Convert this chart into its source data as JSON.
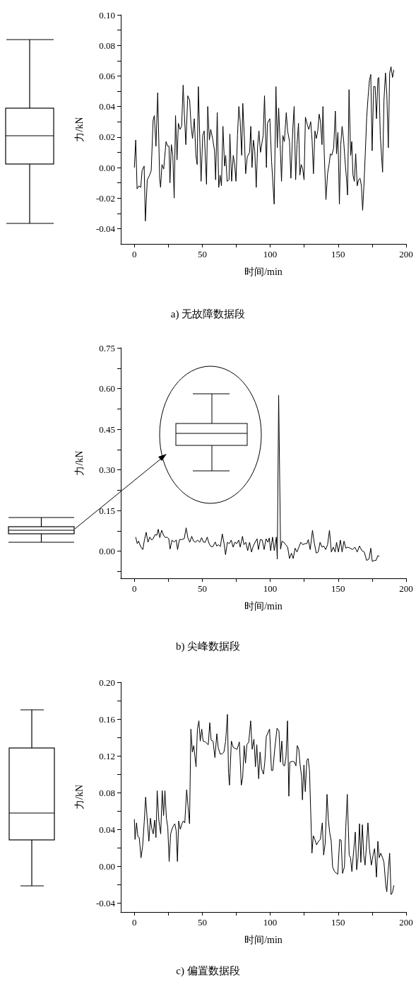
{
  "chart_data": [
    {
      "type": "line",
      "title": "a) 无故障数据段",
      "xlabel": "时间/min",
      "ylabel": "力/kN",
      "color": "#000000",
      "xlim": [
        -10,
        200
      ],
      "ylim": [
        -0.05,
        0.1
      ],
      "xticks": [
        0,
        {
          "value": 25,
          "label": null
        },
        50,
        {
          "value": 75,
          "label": null
        },
        100,
        {
          "value": 125,
          "label": null
        },
        150,
        {
          "value": 175,
          "label": null
        },
        200
      ],
      "yticks": [
        {
          "value": -0.04,
          "label": "-0.04"
        },
        {
          "value": -0.03,
          "label": null
        },
        {
          "value": -0.02,
          "label": "-0.02"
        },
        {
          "value": -0.01,
          "label": null
        },
        {
          "value": 0,
          "label": "0.00"
        },
        {
          "value": 0.01,
          "label": null
        },
        {
          "value": 0.02,
          "label": "0.02"
        },
        {
          "value": 0.03,
          "label": null
        },
        {
          "value": 0.04,
          "label": "0.04"
        },
        {
          "value": 0.05,
          "label": null
        },
        {
          "value": 0.06,
          "label": "0.06"
        },
        {
          "value": 0.07,
          "label": null
        },
        {
          "value": 0.08,
          "label": "0.08"
        },
        {
          "value": 0.09,
          "label": null
        },
        {
          "value": 0.1,
          "label": "0.10"
        }
      ],
      "x": [
        0,
        1,
        2,
        3.4,
        4.7,
        5.7,
        7.2,
        8.1,
        9.5,
        11.2,
        12.4,
        13.8,
        14.7,
        15.9,
        17.2,
        18.6,
        19.3,
        20.3,
        21.6,
        23.3,
        24.5,
        25.5,
        26.2,
        27.2,
        28.3,
        29.3,
        30.3,
        31.4,
        32.4,
        33.6,
        34.8,
        35.9,
        36.7,
        37.9,
        39.3,
        40.7,
        41.7,
        42.8,
        44.1,
        45.3,
        46.2,
        47.1,
        48.3,
        49.1,
        50.3,
        51.4,
        53.1,
        54,
        55.2,
        56.2,
        57.8,
        59,
        59.8,
        61,
        62.1,
        63.1,
        64.1,
        65.2,
        66.4,
        67.2,
        68.3,
        69.7,
        70.3,
        71.6,
        72.8,
        73.8,
        74.8,
        75.9,
        76.9,
        77.9,
        79,
        79.8,
        81,
        81.9,
        83.1,
        84.8,
        85.7,
        86.6,
        87.6,
        88.6,
        89.7,
        90.7,
        91.7,
        92.8,
        94.8,
        95.8,
        97.2,
        97.9,
        99.7,
        101,
        102.9,
        104.2,
        105.2,
        106.2,
        107.3,
        108.3,
        109.3,
        110.4,
        111.8,
        112.8,
        114.2,
        115.2,
        116.6,
        117.6,
        118.7,
        119.7,
        120.8,
        121.8,
        122.8,
        123.9,
        124.9,
        125.9,
        127.3,
        128.4,
        129.8,
        130.8,
        131.8,
        132.9,
        133.9,
        135,
        136,
        137,
        138.1,
        138.8,
        139.8,
        141,
        142.2,
        143.3,
        144.3,
        145.3,
        146.7,
        147.9,
        148.8,
        149.8,
        150.9,
        151.9,
        152.9,
        154,
        155,
        156.1,
        156.9,
        158,
        159.2,
        160,
        160.9,
        161.9,
        162.9,
        164,
        165,
        166.1,
        167.1,
        168,
        168.9,
        169.9,
        171,
        172,
        173,
        174,
        175,
        176.1,
        177.2,
        178.2,
        179.2,
        179.9,
        181,
        182.7,
        183.7,
        184.8,
        185.8,
        186.9,
        187.9,
        188.9,
        190,
        191
      ],
      "values": [
        0,
        0.018,
        -0.014,
        -0.012,
        -0.013,
        -0.002,
        0.001,
        -0.035,
        -0.008,
        -0.005,
        -0.002,
        0.031,
        0.034,
        0.014,
        0.049,
        -0.007,
        -0.013,
        0.002,
        -0.001,
        0.017,
        0.014,
        0.014,
        -0.01,
        0.015,
        0.008,
        -0.02,
        0.034,
        0.005,
        0.029,
        0.025,
        0.027,
        0.054,
        0.037,
        0.015,
        0.047,
        0.044,
        0.028,
        0.019,
        0.032,
        0.008,
        0.002,
        0.053,
        0.014,
        -0.009,
        0.021,
        0.024,
        -0.011,
        0.04,
        0.018,
        0.025,
        0.018,
        0.011,
        -0.008,
        0.036,
        -0.013,
        -0.005,
        -0.012,
        0.027,
        0.001,
        0.008,
        -0.009,
        -0.008,
        0.022,
        -0.009,
        0.008,
        0.002,
        -0.009,
        0.021,
        0.04,
        0.03,
        0.008,
        0.042,
        0.019,
        -0.004,
        0.007,
        0.01,
        0.027,
        0,
        0.018,
        0.011,
        -0.013,
        0.014,
        0.024,
        0.01,
        0.021,
        0.047,
        0,
        0.029,
        0.032,
        0.004,
        -0.024,
        0.053,
        0.013,
        0.039,
        0.015,
        -0.009,
        0.021,
        0.017,
        0.036,
        0.024,
        0.017,
        -0.007,
        0.025,
        0.04,
        -0.008,
        0.015,
        0.029,
        -0.005,
        0.002,
        -0.001,
        -0.008,
        0.033,
        0.028,
        0.025,
        0.03,
        0.018,
        -0.004,
        0.024,
        0.019,
        0.024,
        0.035,
        0.03,
        0.015,
        0.04,
        0.008,
        -0.021,
        -0.004,
        0.002,
        0.009,
        0.008,
        0.013,
        0.037,
        0.009,
        0.023,
        -0.024,
        0.015,
        0.027,
        0.018,
        0.005,
        -0.007,
        -0.018,
        0.051,
        0.008,
        0.017,
        -0.005,
        -0.009,
        0.009,
        -0.012,
        -0.008,
        -0.007,
        -0.012,
        -0.028,
        -0.013,
        0.008,
        0.033,
        0.046,
        0.057,
        0.061,
        0.011,
        0.053,
        0.053,
        0.032,
        0.058,
        0.059,
        0.021,
        -0.003,
        0.044,
        0.062,
        0.048,
        0.013,
        0.062,
        0.066,
        0.059,
        0.064
      ]
    },
    {
      "type": "line",
      "title": "b) 尖峰数据段",
      "xlabel": "时间/min",
      "ylabel": "力/kN",
      "color": "#000000",
      "xlim": [
        -10,
        200
      ],
      "ylim": [
        -0.1,
        0.75
      ],
      "xticks": [
        0,
        {
          "value": 25,
          "label": null
        },
        50,
        {
          "value": 75,
          "label": null
        },
        100,
        {
          "value": 125,
          "label": null
        },
        150,
        {
          "value": 175,
          "label": null
        },
        200
      ],
      "yticks": [
        {
          "value": -0.075,
          "label": null
        },
        {
          "value": 0,
          "label": "0.00"
        },
        {
          "value": 0.075,
          "label": null
        },
        {
          "value": 0.15,
          "label": "0.15"
        },
        {
          "value": 0.225,
          "label": null
        },
        {
          "value": 0.3,
          "label": "0.30"
        },
        {
          "value": 0.375,
          "label": null
        },
        {
          "value": 0.45,
          "label": "0.45"
        },
        {
          "value": 0.525,
          "label": null
        },
        {
          "value": 0.6,
          "label": "0.60"
        },
        {
          "value": 0.675,
          "label": null
        },
        {
          "value": 0.75,
          "label": "0.75"
        }
      ],
      "x": [
        1,
        2.1,
        3.1,
        4.8,
        6.2,
        7.4,
        8.7,
        10,
        11.4,
        12.8,
        13.8,
        15.2,
        16.6,
        17.6,
        18.7,
        20.1,
        21.5,
        22.8,
        23.9,
        25.3,
        26.3,
        27.7,
        29.1,
        30.8,
        31.8,
        33.2,
        34.9,
        36.7,
        38.1,
        39.4,
        40.8,
        42.2,
        43.6,
        45,
        46.4,
        48.1,
        49.5,
        50.9,
        52.2,
        53.6,
        55,
        56.4,
        57.8,
        59.5,
        60.6,
        61.9,
        63.3,
        64.7,
        66.1,
        67.1,
        68.5,
        69.9,
        71.3,
        72.7,
        74,
        75.4,
        76.8,
        77.9,
        79.6,
        80.6,
        82,
        83.4,
        84.8,
        86.2,
        87.5,
        88.9,
        90.3,
        91.3,
        92.7,
        94.1,
        95.5,
        96.9,
        98.3,
        99.3,
        100.3,
        101.7,
        103,
        104.5,
        105.2,
        106.2,
        107.6,
        108.7,
        110,
        111.4,
        112.8,
        114.2,
        115.6,
        116.9,
        118.3,
        119.7,
        121.1,
        122.5,
        123.9,
        125.6,
        127,
        128,
        129.4,
        131.1,
        132.5,
        133.9,
        135.3,
        136.7,
        138.1,
        139.4,
        140.8,
        142.2,
        143.6,
        145,
        146.4,
        147.8,
        148.8,
        150.2,
        151.6,
        152.9,
        154.3,
        155.7,
        157.1,
        158.8,
        160.6,
        162.3,
        164,
        165.7,
        167.5,
        169.2,
        170.9,
        172.7,
        174,
        175.1,
        176.5,
        177.9,
        179.2,
        180.3
      ],
      "values": [
        0.052,
        0.028,
        0.037,
        0.015,
        0.006,
        0.041,
        0.07,
        0.033,
        0.052,
        0.041,
        0.046,
        0.061,
        0.059,
        0.081,
        0.05,
        0.077,
        0.059,
        0.05,
        0.052,
        0.046,
        0.008,
        0.041,
        0.034,
        0.041,
        0.006,
        0.043,
        0.043,
        0.046,
        0.086,
        0.049,
        0.033,
        0.055,
        0.037,
        0.033,
        0.041,
        0.033,
        0.05,
        0.033,
        0.033,
        0.052,
        0.028,
        0.017,
        0.017,
        0.034,
        0.019,
        0.024,
        0.017,
        0.064,
        0.026,
        -0.013,
        0.033,
        0.028,
        0.041,
        0.015,
        0.033,
        0.028,
        0.041,
        0.015,
        0.055,
        0.024,
        0.033,
        0.002,
        0.033,
        -0.003,
        0.019,
        0.033,
        0.046,
        0.006,
        0.043,
        0.041,
        0.006,
        0.046,
        0.033,
        0.049,
        0.002,
        0.052,
        0.002,
        0.052,
        -0.029,
        0.575,
        0.008,
        0.037,
        0.033,
        0.024,
        0.015,
        -0.027,
        -0.007,
        -0.027,
        0.011,
        -0.003,
        0.015,
        0.033,
        0.024,
        0.028,
        0.028,
        0.043,
        0.006,
        0.077,
        0.028,
        -0.007,
        -0.003,
        0.033,
        0.015,
        0.019,
        0.006,
        0.024,
        0.077,
        -0.003,
        0.015,
        -0.003,
        0.033,
        -0.003,
        0.041,
        -0.003,
        0.037,
        0.011,
        0.015,
        0.011,
        0.006,
        0.015,
        -0.003,
        0.019,
        0.002,
        -0.003,
        -0.034,
        -0.029,
        0.011,
        -0.038,
        -0.034,
        -0.034,
        -0.016,
        -0.02
      ]
    },
    {
      "type": "line",
      "title": "c) 偏置数据段",
      "xlabel": "时间/min",
      "ylabel": "力/kN",
      "color": "#000000",
      "xlim": [
        -10,
        200
      ],
      "ylim": [
        -0.05,
        0.2
      ],
      "xticks": [
        0,
        {
          "value": 25,
          "label": null
        },
        50,
        {
          "value": 75,
          "label": null
        },
        100,
        {
          "value": 125,
          "label": null
        },
        150,
        {
          "value": 175,
          "label": null
        },
        200
      ],
      "yticks": [
        {
          "value": -0.04,
          "label": "-0.04"
        },
        {
          "value": -0.02,
          "label": null
        },
        {
          "value": 0,
          "label": "0.00"
        },
        {
          "value": 0.02,
          "label": null
        },
        {
          "value": 0.04,
          "label": "0.04"
        },
        {
          "value": 0.06,
          "label": null
        },
        {
          "value": 0.08,
          "label": "0.08"
        },
        {
          "value": 0.1,
          "label": null
        },
        {
          "value": 0.12,
          "label": "0.12"
        },
        {
          "value": 0.14,
          "label": null
        },
        {
          "value": 0.16,
          "label": "0.16"
        },
        {
          "value": 0.18,
          "label": null
        },
        {
          "value": 0.2,
          "label": "0.20"
        }
      ],
      "x": [
        0,
        0.5,
        1.6,
        2.6,
        3.6,
        4.9,
        6.1,
        7.3,
        8.3,
        9.5,
        10.7,
        11.8,
        12.8,
        13.9,
        14.9,
        15.9,
        16.8,
        18,
        19.4,
        20.5,
        21.5,
        22.5,
        23.6,
        24.6,
        25.6,
        26.7,
        27.7,
        28.8,
        29.8,
        30.8,
        31.7,
        32.6,
        33.8,
        35,
        36,
        37.1,
        38.5,
        39.5,
        40.6,
        41.6,
        42.7,
        43.7,
        45.4,
        46.4,
        47.5,
        48.5,
        49.6,
        50.6,
        52.3,
        54.4,
        55.5,
        56.5,
        57.9,
        59.3,
        60.7,
        61.7,
        63.1,
        64.5,
        65.9,
        67.2,
        68.5,
        69.3,
        70,
        71.4,
        72.8,
        74.2,
        75.6,
        77.3,
        78.7,
        79.7,
        80.8,
        81.8,
        82.8,
        84.2,
        85.6,
        86.7,
        88,
        89.1,
        90.1,
        91.5,
        92.5,
        93.6,
        95,
        96,
        97.1,
        99.5,
        100.9,
        101.9,
        103.3,
        105,
        106.4,
        107.5,
        108.5,
        109.5,
        110.6,
        111.6,
        112.7,
        113.7,
        114.4,
        116.5,
        117.9,
        118.9,
        119.9,
        121,
        122,
        123.1,
        123.7,
        124.8,
        125.8,
        126.9,
        127.9,
        128.9,
        130.7,
        131.7,
        132.8,
        134.1,
        135.5,
        136.9,
        138.3,
        139.3,
        140.4,
        141.8,
        142.8,
        143.8,
        144.9,
        145.9,
        147.3,
        149.7,
        151.1,
        152.2,
        153.2,
        154.6,
        155.6,
        156.7,
        158.1,
        159.1,
        160.1,
        161.2,
        162.6,
        163.6,
        164.6,
        165.7,
        166.7,
        167.8,
        168.8,
        169.8,
        170.9,
        171.9,
        173,
        174.4,
        175.7,
        176.8,
        178.2,
        179.2,
        180.2,
        181.3,
        182.7,
        183.7,
        185.1,
        185.8,
        186.8,
        187.9,
        188.9,
        189.9,
        191
      ],
      "values": [
        0.051,
        0.029,
        0.047,
        0.032,
        0.031,
        0.009,
        0.022,
        0.049,
        0.075,
        0.05,
        0.027,
        0.052,
        0.041,
        0.035,
        0.05,
        0.031,
        0.082,
        0.05,
        0.035,
        0.082,
        0.055,
        0.082,
        0.052,
        0.042,
        0.005,
        0.035,
        0.04,
        0.044,
        0.046,
        0.038,
        0.005,
        0.049,
        0.04,
        0.046,
        0.049,
        0.047,
        0.083,
        0.065,
        0.046,
        0.149,
        0.124,
        0.131,
        0.108,
        0.149,
        0.158,
        0.136,
        0.149,
        0.136,
        0.135,
        0.132,
        0.156,
        0.137,
        0.136,
        0.118,
        0.144,
        0.129,
        0.122,
        0.122,
        0.124,
        0.136,
        0.165,
        0.101,
        0.088,
        0.136,
        0.129,
        0.128,
        0.127,
        0.135,
        0.088,
        0.096,
        0.131,
        0.112,
        0.132,
        0.135,
        0.158,
        0.127,
        0.138,
        0.108,
        0.132,
        0.095,
        0.124,
        0.106,
        0.1,
        0.113,
        0.141,
        0.149,
        0.104,
        0.104,
        0.127,
        0.15,
        0.147,
        0.113,
        0.136,
        0.11,
        0.109,
        0.119,
        0.158,
        0.076,
        0.113,
        0.114,
        0.113,
        0.109,
        0.131,
        0.127,
        0.11,
        0.097,
        0.072,
        0.11,
        0.081,
        0.115,
        0.117,
        0.104,
        0.014,
        0.033,
        0.029,
        0.023,
        0.027,
        0.029,
        0.047,
        0.012,
        0.024,
        0.078,
        0.05,
        0.036,
        0.027,
        -0.001,
        -0.006,
        -0.009,
        0.029,
        0.028,
        -0.008,
        -0.001,
        0.042,
        0.078,
        0.012,
        0.009,
        -0.006,
        0.013,
        0.037,
        -0.004,
        0.009,
        0.046,
        0.004,
        0.045,
        0.012,
        0.001,
        0.024,
        0.047,
        0.019,
        0.001,
        0.012,
        0.019,
        -0.012,
        0.027,
        0.009,
        0.014,
        0.009,
        0.004,
        -0.022,
        -0.028,
        -0.005,
        0.014,
        -0.031,
        -0.029,
        -0.021
      ]
    }
  ]
}
